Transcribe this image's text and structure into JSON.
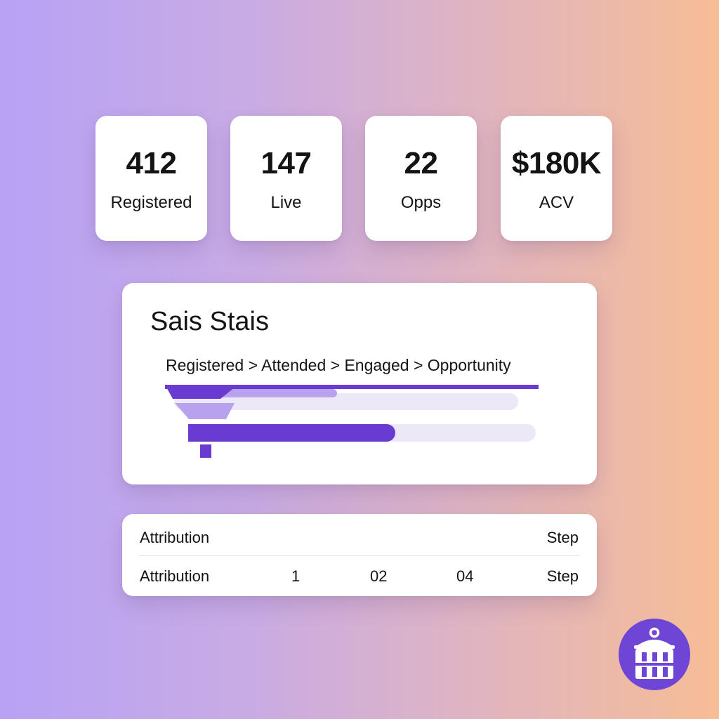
{
  "stats": [
    {
      "value": "412",
      "label": "Registered"
    },
    {
      "value": "147",
      "label": "Live"
    },
    {
      "value": "22",
      "label": "Opps"
    },
    {
      "value": "$180K",
      "label": "ACV"
    }
  ],
  "funnel": {
    "title": "Sais Stais",
    "stages_text": "Registered > Attended > Engaged > Opportunity",
    "bars": [
      {
        "fill_fraction": 1.0
      },
      {
        "fill_fraction": 0.5
      },
      {
        "fill_fraction": 0.58
      }
    ],
    "colors": {
      "dark": "#6a3bd1",
      "medium": "#9c82e3",
      "light": "#b8a2ee",
      "track": "#ece8f8"
    }
  },
  "attribution": {
    "header": {
      "label": "Attribution",
      "step": "Step"
    },
    "row": {
      "label": "Attribution",
      "c1": "1",
      "c2": "02",
      "c3": "04",
      "step": "Step"
    }
  },
  "logo": {
    "icon": "lighthouse-icon",
    "color": "#6f45d6"
  }
}
